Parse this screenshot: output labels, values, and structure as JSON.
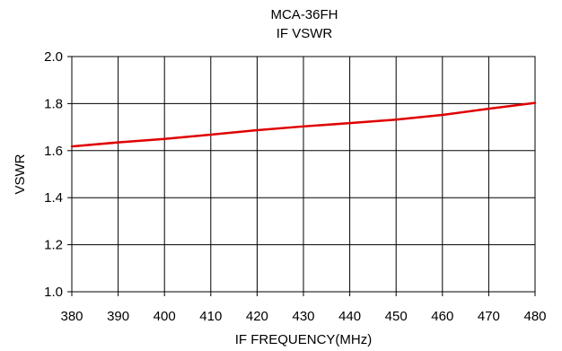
{
  "chart_data": {
    "type": "line",
    "title": "MCA-36FH",
    "subtitle": "IF VSWR",
    "xlabel": "IF FREQUENCY(MHz)",
    "ylabel": "VSWR",
    "xlim": [
      380,
      480
    ],
    "ylim": [
      1.0,
      2.0
    ],
    "x_ticks": [
      "380",
      "390",
      "400",
      "410",
      "420",
      "430",
      "440",
      "450",
      "460",
      "470",
      "480"
    ],
    "y_ticks": [
      "1.0",
      "1.2",
      "1.4",
      "1.6",
      "1.8",
      "2.0"
    ],
    "grid": true,
    "line_color": "#e00000",
    "series": [
      {
        "x": [
          380,
          390,
          400,
          410,
          420,
          430,
          440,
          450,
          460,
          470,
          480
        ],
        "y": [
          1.618,
          1.635,
          1.65,
          1.668,
          1.687,
          1.703,
          1.717,
          1.732,
          1.752,
          1.778,
          1.803
        ]
      }
    ]
  }
}
